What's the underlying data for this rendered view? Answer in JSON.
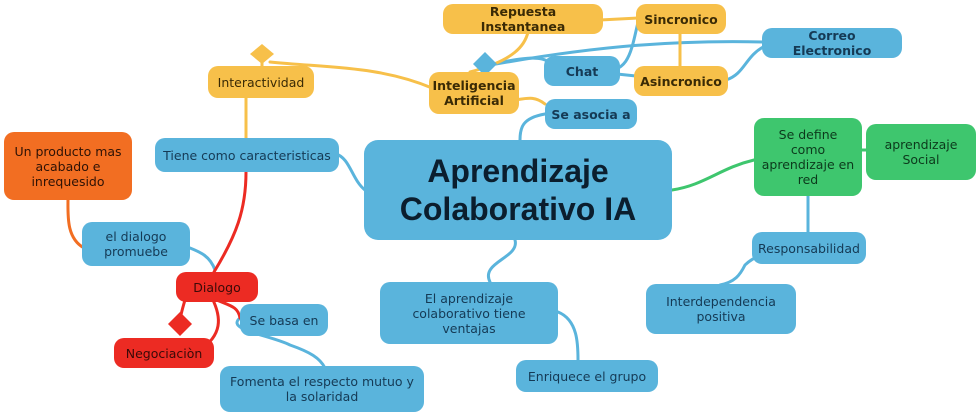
{
  "colors": {
    "blue": "#5ab4dc",
    "yellow": "#f7c04a",
    "red": "#ec2b23",
    "orange": "#f26e22",
    "green": "#3ec66e"
  },
  "central_topic": "Aprendizaje Colaborativo IA",
  "nodes": {
    "respuesta_instantanea": "Repuesta Instantanea",
    "sincronico": "Sincronico",
    "correo_electronico": "Correo Electronico",
    "chat": "Chat",
    "asincronico": "Asincronico",
    "interactividad": "Interactividad",
    "inteligencia_artificial": "Inteligencia Artificial",
    "se_asocia_a": "Se asocia a",
    "tiene_caracteristicas": "Tiene como caracteristicas",
    "producto_acabado": "Un producto mas acabado e inrequesido",
    "dialogo_promueve": "el dialogo promuebe",
    "dialogo": "Dialogo",
    "negociacion": "Negociaciòn",
    "se_basa_en": "Se basa en",
    "fomenta_respeto": "Fomenta el respecto mutuo y la solaridad",
    "ventajas": "El aprendizaje colaborativo tiene ventajas",
    "enriquece_grupo": "Enriquece el grupo",
    "se_define_red": "Se define como aprendizaje en red",
    "aprendizaje_social": "aprendizaje Social",
    "responsabilidad": "Responsabilidad",
    "interdependencia": "Interdependencia positiva"
  }
}
